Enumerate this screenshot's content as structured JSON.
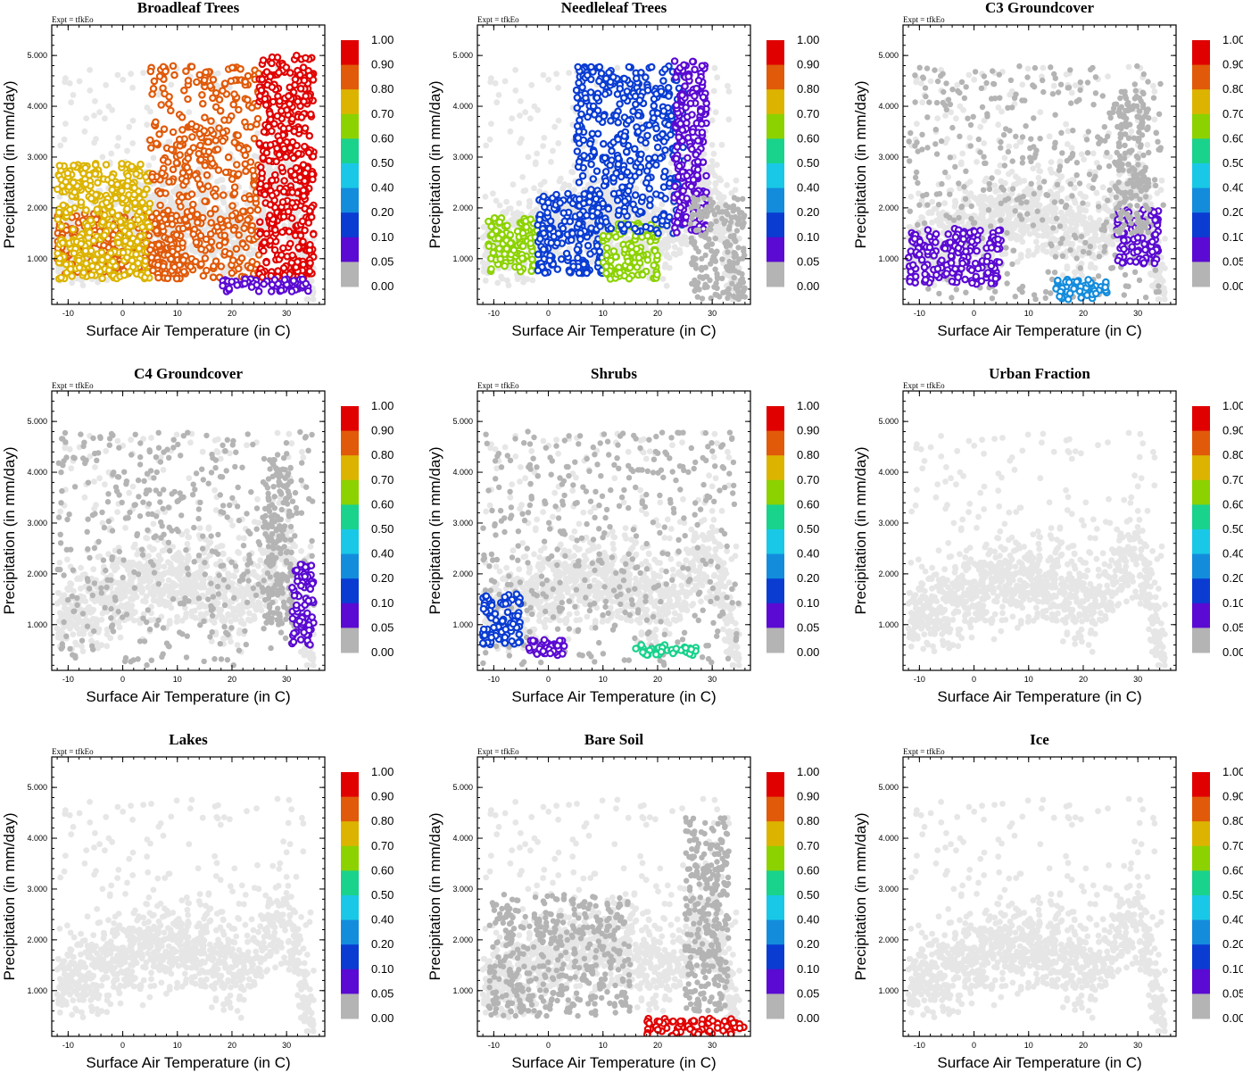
{
  "figure": {
    "expt_label": "Expt = tfkEo",
    "xlabel": "Surface Air Temperature (in C)",
    "ylabel": "Precipitation (in mm/day)",
    "xticks": [
      -10,
      0,
      10,
      20,
      30
    ],
    "yticks": [
      "1.000",
      "2.000",
      "3.000",
      "4.000",
      "5.000"
    ],
    "colorbar_labels": [
      "1.00",
      "0.90",
      "0.80",
      "0.70",
      "0.60",
      "0.50",
      "0.40",
      "0.20",
      "0.10",
      "0.05",
      "0.00"
    ],
    "colorbar_colors": [
      "#e00000",
      "#e05a0a",
      "#dcb400",
      "#8cd200",
      "#19d28c",
      "#19c8e6",
      "#148cdc",
      "#0a3cd2",
      "#5a0ad2",
      "#b4b4b4"
    ]
  },
  "chart_data": [
    {
      "type": "scatter",
      "title": "Broadleaf Trees",
      "xlabel": "Surface Air Temperature (in C)",
      "ylabel": "Precipitation (in mm/day)",
      "xlim": [
        -13,
        37
      ],
      "ylim": [
        0.1,
        5.6
      ],
      "color_scale": "fraction 0-1 (colorbar)",
      "regions": [
        {
          "x_range": [
            -12,
            12
          ],
          "y_range": [
            0.7,
            1.9
          ],
          "color_value": 0.85
        },
        {
          "x_range": [
            -12,
            5
          ],
          "y_range": [
            0.6,
            2.9
          ],
          "color_value": 0.75
        },
        {
          "x_range": [
            5,
            25
          ],
          "y_range": [
            0.6,
            4.8
          ],
          "color_value": 0.85
        },
        {
          "x_range": [
            25,
            35
          ],
          "y_range": [
            0.6,
            5.0
          ],
          "color_value": 0.95
        },
        {
          "x_range": [
            18,
            34
          ],
          "y_range": [
            0.35,
            0.6
          ],
          "color_value": 0.08
        }
      ]
    },
    {
      "type": "scatter",
      "title": "Needleleaf Trees",
      "xlabel": "Surface Air Temperature (in C)",
      "ylabel": "Precipitation (in mm/day)",
      "xlim": [
        -13,
        37
      ],
      "ylim": [
        0.1,
        5.6
      ],
      "color_scale": "fraction 0-1 (colorbar)",
      "regions": [
        {
          "x_range": [
            -11,
            -2
          ],
          "y_range": [
            0.7,
            1.8
          ],
          "color_value": 0.7
        },
        {
          "x_range": [
            -2,
            10
          ],
          "y_range": [
            0.7,
            2.3
          ],
          "color_value": 0.15
        },
        {
          "x_range": [
            10,
            20
          ],
          "y_range": [
            0.6,
            1.7
          ],
          "color_value": 0.65
        },
        {
          "x_range": [
            5,
            25
          ],
          "y_range": [
            1.5,
            4.8
          ],
          "color_value": 0.2
        },
        {
          "x_range": [
            23,
            29
          ],
          "y_range": [
            1.5,
            4.9
          ],
          "color_value": 0.07
        },
        {
          "x_range": [
            26,
            36
          ],
          "y_range": [
            0.2,
            2.2
          ],
          "color_value": 0.0
        }
      ]
    },
    {
      "type": "scatter",
      "title": "C3 Groundcover",
      "xlabel": "Surface Air Temperature (in C)",
      "ylabel": "Precipitation (in mm/day)",
      "xlim": [
        -13,
        37
      ],
      "ylim": [
        0.1,
        5.6
      ],
      "color_scale": "fraction 0-1 (colorbar)",
      "regions": [
        {
          "x_range": [
            -12,
            35
          ],
          "y_range": [
            0.2,
            4.8
          ],
          "color_value": 0.0
        },
        {
          "x_range": [
            -12,
            5
          ],
          "y_range": [
            0.5,
            1.6
          ],
          "color_value": 0.07
        },
        {
          "x_range": [
            15,
            25
          ],
          "y_range": [
            0.2,
            0.6
          ],
          "color_value": 0.35
        },
        {
          "x_range": [
            26,
            34
          ],
          "y_range": [
            0.9,
            2.0
          ],
          "color_value": 0.07
        },
        {
          "x_range": [
            26,
            32
          ],
          "y_range": [
            1.5,
            4.3
          ],
          "color_value": 0.0
        }
      ]
    },
    {
      "type": "scatter",
      "title": "C4 Groundcover",
      "xlabel": "Surface Air Temperature (in C)",
      "ylabel": "Precipitation (in mm/day)",
      "xlim": [
        -13,
        37
      ],
      "ylim": [
        0.1,
        5.6
      ],
      "color_scale": "fraction 0-1 (colorbar)",
      "regions": [
        {
          "x_range": [
            -12,
            35
          ],
          "y_range": [
            0.2,
            4.8
          ],
          "color_value": 0.0
        },
        {
          "x_range": [
            26,
            31
          ],
          "y_range": [
            1.0,
            4.3
          ],
          "color_value": 0.0
        },
        {
          "x_range": [
            31,
            35
          ],
          "y_range": [
            0.6,
            2.2
          ],
          "color_value": 0.06
        }
      ]
    },
    {
      "type": "scatter",
      "title": "Shrubs",
      "xlabel": "Surface Air Temperature (in C)",
      "ylabel": "Precipitation (in mm/day)",
      "xlim": [
        -13,
        37
      ],
      "ylim": [
        0.1,
        5.6
      ],
      "color_scale": "fraction 0-1 (colorbar)",
      "regions": [
        {
          "x_range": [
            -12,
            35
          ],
          "y_range": [
            0.2,
            4.8
          ],
          "color_value": 0.0
        },
        {
          "x_range": [
            -12,
            -5
          ],
          "y_range": [
            0.6,
            1.6
          ],
          "color_value": 0.15
        },
        {
          "x_range": [
            -4,
            3
          ],
          "y_range": [
            0.4,
            0.7
          ],
          "color_value": 0.1
        },
        {
          "x_range": [
            16,
            27
          ],
          "y_range": [
            0.4,
            0.6
          ],
          "color_value": 0.55
        }
      ]
    },
    {
      "type": "scatter",
      "title": "Urban Fraction",
      "xlabel": "Surface Air Temperature (in C)",
      "ylabel": "Precipitation (in mm/day)",
      "xlim": [
        -13,
        37
      ],
      "ylim": [
        0.1,
        5.6
      ],
      "color_scale": "fraction 0-1 (colorbar)",
      "regions": [
        {
          "x_range": [
            -12,
            35
          ],
          "y_range": [
            0.2,
            4.8
          ],
          "color_value": null
        }
      ]
    },
    {
      "type": "scatter",
      "title": "Lakes",
      "xlabel": "Surface Air Temperature (in C)",
      "ylabel": "Precipitation (in mm/day)",
      "xlim": [
        -13,
        37
      ],
      "ylim": [
        0.1,
        5.6
      ],
      "color_scale": "fraction 0-1 (colorbar)",
      "regions": [
        {
          "x_range": [
            -12,
            35
          ],
          "y_range": [
            0.2,
            4.8
          ],
          "color_value": null
        }
      ]
    },
    {
      "type": "scatter",
      "title": "Bare Soil",
      "xlabel": "Surface Air Temperature (in C)",
      "ylabel": "Precipitation (in mm/day)",
      "xlim": [
        -13,
        37
      ],
      "ylim": [
        0.1,
        5.6
      ],
      "color_scale": "fraction 0-1 (colorbar)",
      "regions": [
        {
          "x_range": [
            -12,
            35
          ],
          "y_range": [
            0.2,
            4.8
          ],
          "color_value": null
        },
        {
          "x_range": [
            -11,
            15
          ],
          "y_range": [
            0.5,
            2.9
          ],
          "color_value": 0.0
        },
        {
          "x_range": [
            25,
            33
          ],
          "y_range": [
            0.6,
            4.4
          ],
          "color_value": 0.0
        },
        {
          "x_range": [
            18,
            36
          ],
          "y_range": [
            0.1,
            0.45
          ],
          "color_value": 0.97
        }
      ]
    },
    {
      "type": "scatter",
      "title": "Ice",
      "xlabel": "Surface Air Temperature (in C)",
      "ylabel": "Precipitation (in mm/day)",
      "xlim": [
        -13,
        37
      ],
      "ylim": [
        0.1,
        5.6
      ],
      "color_scale": "fraction 0-1 (colorbar)",
      "regions": [
        {
          "x_range": [
            -12,
            35
          ],
          "y_range": [
            0.2,
            4.8
          ],
          "color_value": null
        }
      ]
    }
  ]
}
